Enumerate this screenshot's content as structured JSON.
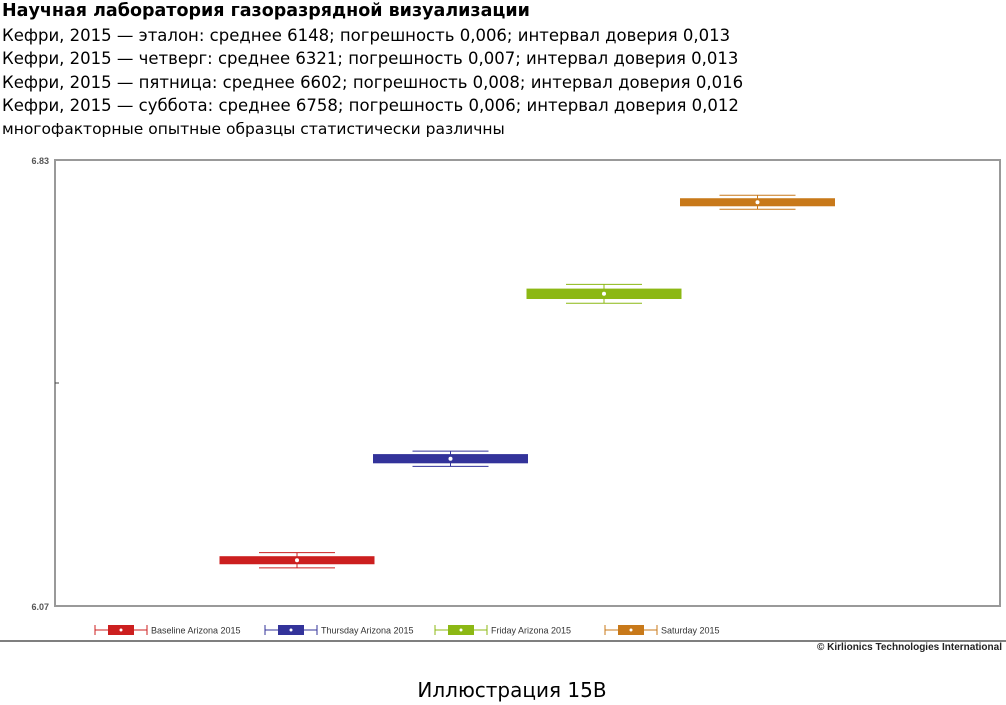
{
  "header": {
    "title": "Научная лаборатория газоразрядной визуализации",
    "lines": [
      "Кефри, 2015 — эталон: среднее 6148; погрешность 0,006; интервал доверия 0,013",
      "Кефри, 2015 — четверг: среднее 6321; погрешность 0,007; интервал доверия 0,013",
      "Кефри, 2015 — пятница: среднее 6602; погрешность 0,008; интервал доверия 0,016",
      "Кефри, 2015 — суббота: среднее 6758; погрешность 0,006; интервал доверия 0,012"
    ],
    "note": "многофакторные опытные образцы статистически различны"
  },
  "chart_data": {
    "type": "box",
    "ylim": [
      6.07,
      6.83
    ],
    "yticks": [
      "6.83",
      "6.07"
    ],
    "legend_position": "bottom",
    "grid": false,
    "series": [
      {
        "name": "Baseline Arizona 2015",
        "mean": 6.148,
        "error": 0.006,
        "ci": 0.013,
        "color": "#cc1f1f"
      },
      {
        "name": "Thursday Arizona 2015",
        "mean": 6.321,
        "error": 0.007,
        "ci": 0.013,
        "color": "#33339a"
      },
      {
        "name": "Friday Arizona 2015",
        "mean": 6.602,
        "error": 0.008,
        "ci": 0.016,
        "color": "#8cb814"
      },
      {
        "name": "Saturday 2015",
        "mean": 6.758,
        "error": 0.006,
        "ci": 0.012,
        "color": "#c8791a"
      }
    ]
  },
  "copyright": "© Kirlionics Technologies International",
  "caption": "Иллюстрация 15B"
}
